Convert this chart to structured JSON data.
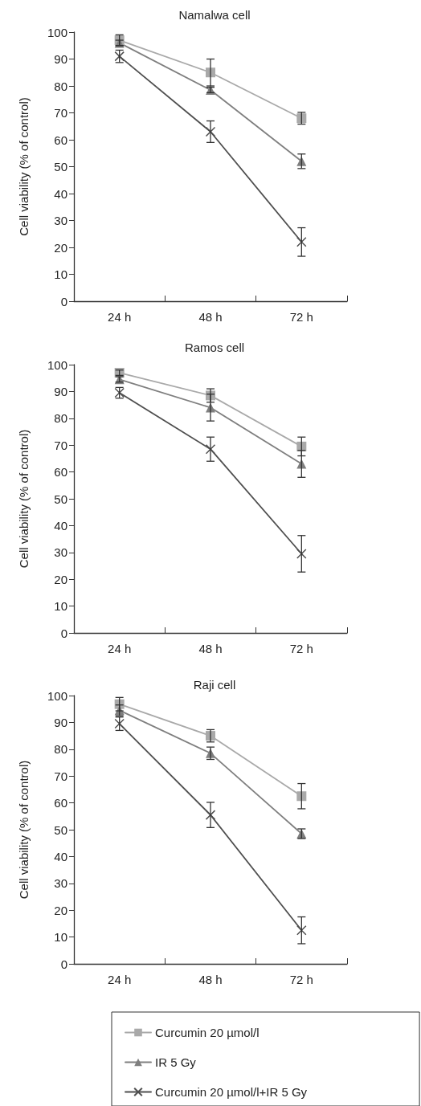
{
  "chart_data": [
    {
      "type": "line",
      "title": "Namalwa cell",
      "ylabel": "Cell viability (% of control)",
      "categories": [
        "24 h",
        "48 h",
        "72 h"
      ],
      "ylim": [
        0,
        100
      ],
      "yticks": [
        0,
        10,
        20,
        30,
        40,
        50,
        60,
        70,
        80,
        90,
        100
      ],
      "series": [
        {
          "color": "#a9a9a9",
          "marker": "square",
          "values": [
            97,
            85,
            68
          ],
          "errors": [
            2,
            5,
            2.2
          ]
        },
        {
          "color": "#7f7f7f",
          "marker": "triangle",
          "values": [
            96,
            78.5,
            52
          ],
          "errors": [
            1,
            1,
            2.7
          ]
        },
        {
          "color": "#4f4f4f",
          "marker": "cross",
          "values": [
            91,
            63,
            22
          ],
          "errors": [
            2.3,
            4,
            5.3
          ]
        }
      ]
    },
    {
      "type": "line",
      "title": "Ramos cell",
      "ylabel": "Cell viability (% of control)",
      "categories": [
        "24 h",
        "48 h",
        "72 h"
      ],
      "ylim": [
        0,
        100
      ],
      "yticks": [
        0,
        10,
        20,
        30,
        40,
        50,
        60,
        70,
        80,
        90,
        100
      ],
      "series": [
        {
          "color": "#a9a9a9",
          "marker": "square",
          "values": [
            97,
            88.5,
            69.5
          ],
          "errors": [
            1,
            2.5,
            3.5
          ]
        },
        {
          "color": "#7f7f7f",
          "marker": "triangle",
          "values": [
            94.5,
            84,
            63
          ],
          "errors": [
            1,
            5,
            5
          ]
        },
        {
          "color": "#4f4f4f",
          "marker": "cross",
          "values": [
            89.5,
            68.5,
            29.5
          ],
          "errors": [
            2,
            4.5,
            6.8
          ]
        }
      ]
    },
    {
      "type": "line",
      "title": "Raji cell",
      "ylabel": "Cell viability (% of control)",
      "categories": [
        "24 h",
        "48 h",
        "72 h"
      ],
      "ylim": [
        0,
        100
      ],
      "yticks": [
        0,
        10,
        20,
        30,
        40,
        50,
        60,
        70,
        80,
        90,
        100
      ],
      "legend": "bottom",
      "series": [
        {
          "name": "Curcumin 20 µmol/l",
          "color": "#a9a9a9",
          "marker": "square",
          "values": [
            96.8,
            85,
            62.5
          ],
          "errors": [
            2.5,
            2.3,
            4.7
          ]
        },
        {
          "name": "IR 5 Gy",
          "color": "#7f7f7f",
          "marker": "triangle",
          "values": [
            94.5,
            78.5,
            48.5
          ],
          "errors": [
            2,
            2.3,
            1.8
          ]
        },
        {
          "name": "Curcumin 20 µmol/l+IR 5 Gy",
          "color": "#4f4f4f",
          "marker": "cross",
          "values": [
            89.5,
            55.5,
            12.5
          ],
          "errors": [
            2.5,
            4.7,
            5
          ]
        }
      ]
    }
  ]
}
